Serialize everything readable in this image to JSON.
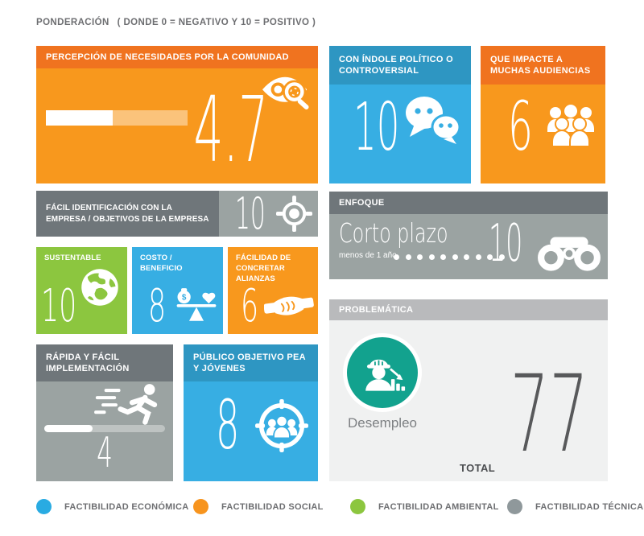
{
  "header": {
    "title": "PONDERACIÓN",
    "subtitle": "( DONDE 0 = NEGATIVO Y 10 = POSITIVO )"
  },
  "tiles": {
    "percepcion": {
      "title": "PERCEPCIÓN DE NECESIDADES POR LA COMUNIDAD",
      "value": "4.7",
      "progress_pct": 47,
      "icon": "eye-magnifier-icon"
    },
    "politico": {
      "title": "CON ÍNDOLE POLÍTICO O CONTROVERSIAL",
      "value": "10",
      "icon": "chat-bubbles-icon"
    },
    "audiencias": {
      "title": "QUE IMPACTE A MUCHAS AUDIENCIAS",
      "value": "6",
      "icon": "audience-crowd-icon"
    },
    "identificacion": {
      "title": "FÁCIL IDENTIFICACIÓN CON LA EMPRESA / OBJETIVOS DE LA EMPRESA",
      "value": "10",
      "icon": "crosshair-target-icon"
    },
    "enfoque": {
      "header": "ENFOQUE",
      "label": "Corto plazo",
      "sublabel": "menos de 1 año",
      "dots": 10,
      "value": "10",
      "icon": "binoculars-icon"
    },
    "sustentable": {
      "title": "SUSTENTABLE",
      "value": "10",
      "icon": "globe-icon"
    },
    "costo": {
      "title": "COSTO / BENEFICIO",
      "value": "8",
      "icon": "balance-scale-icon"
    },
    "alianzas": {
      "title": "FÁCILIDAD DE CONCRETAR ALIANZAS",
      "value": "6",
      "icon": "handshake-icon"
    },
    "implementacion": {
      "title": "RÁPIDA Y FÁCIL IMPLEMENTACIÓN",
      "value": "4",
      "progress_pct": 40,
      "icon": "runner-icon"
    },
    "publico": {
      "title": "PÚBLICO OBJETIVO PEA Y JÓVENES",
      "value": "8",
      "icon": "target-audience-icon"
    },
    "problematica": {
      "header": "PROBLEMÁTICA",
      "item": "Desempleo",
      "total_label": "TOTAL",
      "total_value": "77",
      "icon": "unemployment-worker-icon"
    }
  },
  "legend": [
    {
      "label": "FACTIBILIDAD ECONÓMICA",
      "color": "#29abe2"
    },
    {
      "label": "FACTIBILIDAD SOCIAL",
      "color": "#f7941e"
    },
    {
      "label": "FACTIBILIDAD AMBIENTAL",
      "color": "#8cc63f"
    },
    {
      "label": "FACTIBILIDAD TÉCNICA",
      "color": "#8f989b"
    }
  ],
  "palette": {
    "orange_header": "#f0731f",
    "orange_body": "#f8981d",
    "blue_header": "#2e96c2",
    "blue_body": "#37aee3",
    "green": "#8cc63f",
    "gray_dark": "#6f767a",
    "gray_mid": "#9ba3a2",
    "gray_light_header": "#b9babc",
    "panel_bg": "#f0f1f1",
    "teal": "#12a28e",
    "text_gray": "#6d6e71",
    "total_text": "#58595b"
  },
  "chart_data": {
    "type": "table",
    "title": "PONDERACIÓN ( DONDE 0 = NEGATIVO Y 10 = POSITIVO )",
    "scale": {
      "min": 0,
      "max": 10,
      "note": "0 = negativo, 10 = positivo"
    },
    "categories": [
      "PERCEPCIÓN DE NECESIDADES POR LA COMUNIDAD",
      "CON ÍNDOLE POLÍTICO O CONTROVERSIAL",
      "QUE IMPACTE A MUCHAS AUDIENCIAS",
      "FÁCIL IDENTIFICACIÓN CON LA EMPRESA / OBJETIVOS DE LA EMPRESA",
      "ENFOQUE: CORTO PLAZO (MENOS DE 1 AÑO)",
      "SUSTENTABLE",
      "COSTO / BENEFICIO",
      "FÁCILIDAD DE CONCRETAR ALIANZAS",
      "RÁPIDA Y FÁCIL IMPLEMENTACIÓN",
      "PÚBLICO OBJETIVO PEA Y JÓVENES"
    ],
    "values": [
      4.7,
      10,
      6,
      10,
      10,
      10,
      8,
      6,
      4,
      8
    ],
    "total": 77,
    "problematica": "Desempleo",
    "legend": [
      "FACTIBILIDAD ECONÓMICA",
      "FACTIBILIDAD SOCIAL",
      "FACTIBILIDAD AMBIENTAL",
      "FACTIBILIDAD TÉCNICA"
    ]
  }
}
